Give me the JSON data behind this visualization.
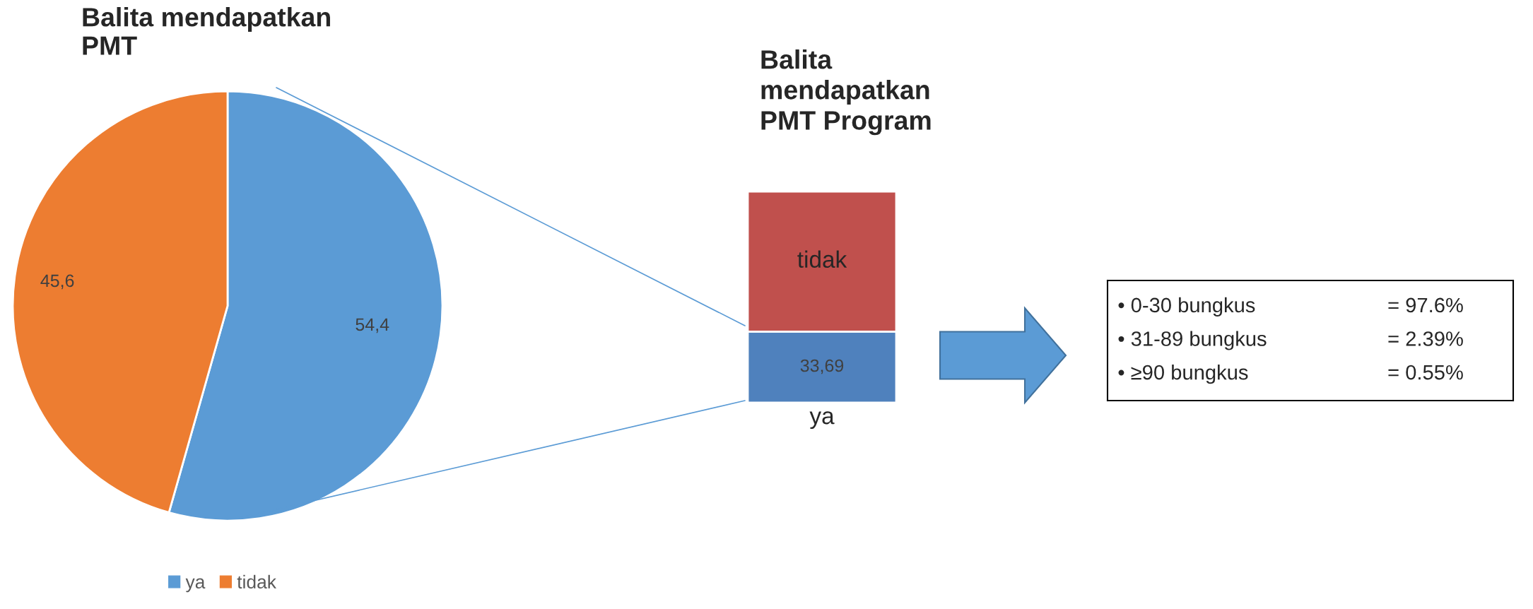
{
  "chart_data": [
    {
      "type": "pie",
      "title": "Balita mendapatkan\nPMT",
      "categories": [
        "ya",
        "tidak"
      ],
      "values": [
        54.4,
        45.6
      ],
      "colors": [
        "#5b9bd5",
        "#ed7d31"
      ],
      "value_labels": [
        "54,4",
        "45,6"
      ],
      "legend": "bottom"
    },
    {
      "type": "bar",
      "title": "Balita\nmendapatkan\nPMT Program",
      "categories": [
        null
      ],
      "stacked": true,
      "ylim": [
        0,
        100
      ],
      "tick_labels": false,
      "series": [
        {
          "name": "ya",
          "color": "#4f81bd",
          "values": [
            33.69
          ],
          "value_labels": [
            "33,69"
          ]
        },
        {
          "name": "tidak",
          "color": "#c0504d",
          "values": [
            66.31
          ],
          "value_labels": [
            null
          ]
        }
      ]
    },
    {
      "type": "other",
      "annotations": [
        "• 0-30 bungkus",
        "= 97.6%",
        "• 31-89 bungkus",
        "= 2.39%",
        "• ≥90 bungkus",
        "= 0.55%"
      ]
    }
  ]
}
